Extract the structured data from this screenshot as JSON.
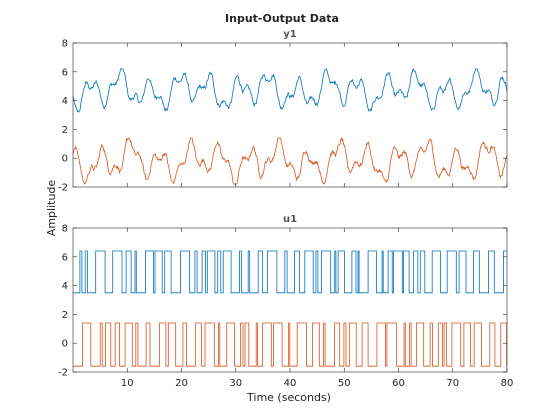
{
  "title": "Input-Output Data",
  "ylabel": "Amplitude",
  "xlabel": "Time (seconds)",
  "colors": {
    "series1": "#0072bd",
    "series2": "#d95319",
    "axes": "#262626"
  },
  "chart_data": [
    {
      "type": "line",
      "title": "y1",
      "xlim": [
        0,
        80
      ],
      "ylim": [
        -2,
        8
      ],
      "yticks": [
        -2,
        0,
        2,
        4,
        6,
        8
      ],
      "xticks": [
        10,
        20,
        30,
        40,
        50,
        60,
        70,
        80
      ],
      "show_xtick_labels": false,
      "series": [
        {
          "color": "#0072bd",
          "mean": 5.0,
          "range": [
            3.2,
            6.2
          ],
          "style": "smooth-noisy"
        },
        {
          "color": "#d95319",
          "mean": 0.2,
          "range": [
            -1.8,
            1.4
          ],
          "style": "smooth-noisy"
        }
      ]
    },
    {
      "type": "line",
      "title": "u1",
      "xlim": [
        0,
        80
      ],
      "ylim": [
        -2,
        8
      ],
      "yticks": [
        -2,
        0,
        2,
        4,
        6,
        8
      ],
      "xticks": [
        10,
        20,
        30,
        40,
        50,
        60,
        70,
        80
      ],
      "xtick_labels": [
        "10",
        "20",
        "30",
        "40",
        "50",
        "60",
        "70",
        "80"
      ],
      "show_xtick_labels": true,
      "series": [
        {
          "color": "#0072bd",
          "levels": [
            3.5,
            6.4
          ],
          "style": "binary-step"
        },
        {
          "color": "#d95319",
          "levels": [
            -1.6,
            1.4
          ],
          "style": "binary-step"
        }
      ]
    }
  ]
}
